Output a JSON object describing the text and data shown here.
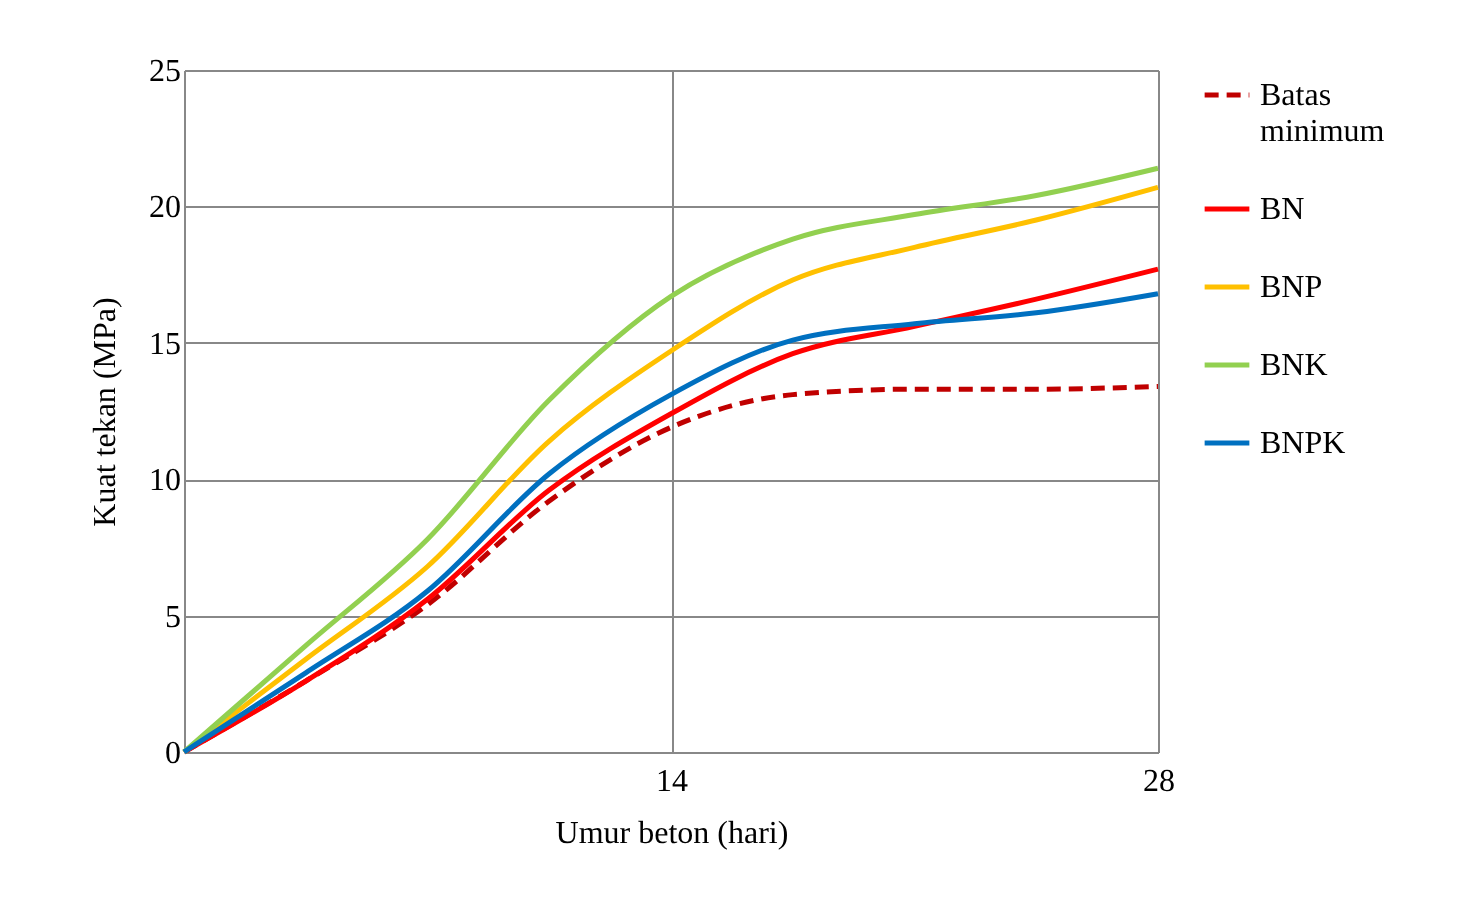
{
  "chart_data": {
    "type": "line",
    "xlabel": "Umur beton (hari)",
    "ylabel": "Kuat tekan (MPa)",
    "x": [
      0,
      3.5,
      7,
      10.5,
      14,
      17.5,
      21,
      24.5,
      28
    ],
    "xlim": [
      0,
      28
    ],
    "xticks": [
      14,
      28
    ],
    "ylim": [
      0,
      25
    ],
    "yticks": [
      0,
      5,
      10,
      15,
      20,
      25
    ],
    "grid": true,
    "legend": "right",
    "series": [
      {
        "name": "Batas minimum",
        "color": "#c00000",
        "line_style": "dashed",
        "values": [
          0,
          2.6,
          5.4,
          9.2,
          11.9,
          13.1,
          13.3,
          13.3,
          13.4
        ]
      },
      {
        "name": "BN",
        "color": "#ff0000",
        "values": [
          0,
          2.6,
          5.6,
          9.6,
          12.4,
          14.6,
          15.6,
          16.6,
          17.7
        ]
      },
      {
        "name": "BNP",
        "color": "#ffc000",
        "values": [
          0,
          3.4,
          6.8,
          11.4,
          14.7,
          17.3,
          18.5,
          19.5,
          20.7
        ]
      },
      {
        "name": "BNK",
        "color": "#92d050",
        "values": [
          0,
          3.9,
          7.8,
          12.9,
          16.7,
          18.8,
          19.7,
          20.4,
          21.4
        ]
      },
      {
        "name": "BNPK",
        "color": "#0070c0",
        "values": [
          0,
          2.9,
          5.9,
          10.2,
          13.1,
          15.1,
          15.7,
          16.1,
          16.8
        ]
      }
    ]
  }
}
